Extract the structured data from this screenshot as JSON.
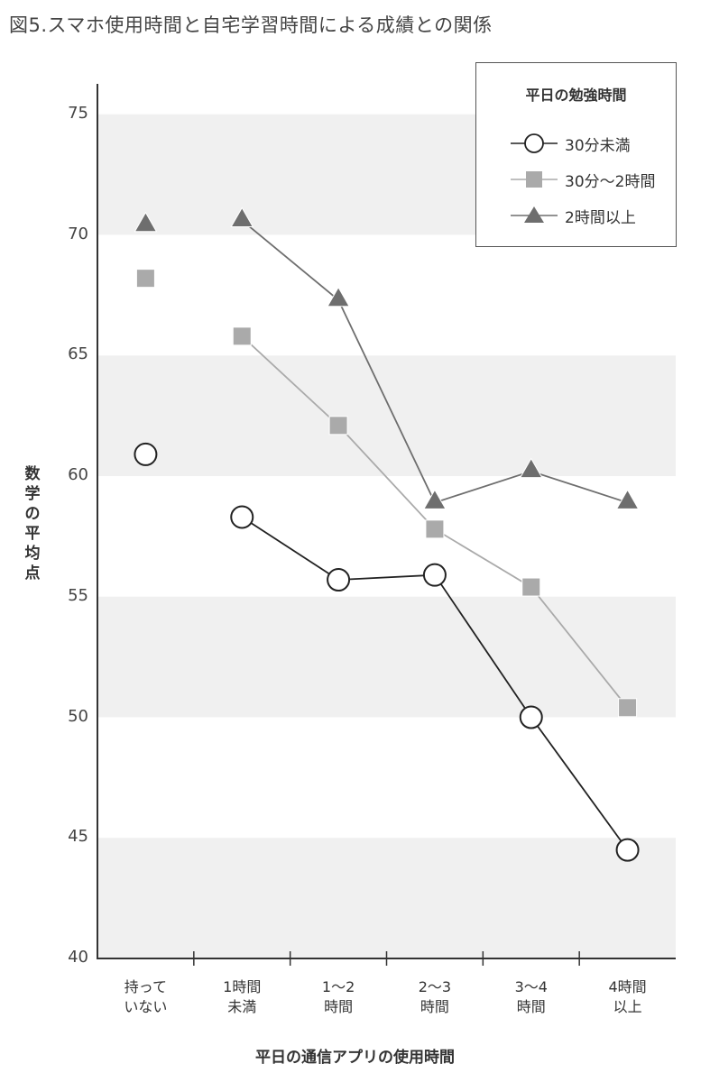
{
  "title": "図5.スマホ使用時間と自宅学習時間による成績との関係",
  "chart_data": {
    "type": "line",
    "title": "図5.スマホ使用時間と自宅学習時間による成績との関係",
    "xlabel": "平日の通信アプリの使用時間",
    "ylabel": "数学の平均点",
    "ylim": [
      40,
      77
    ],
    "yticks": [
      40,
      45,
      50,
      55,
      60,
      65,
      70,
      75
    ],
    "categories": [
      "持って\nいない",
      "1時間\n未満",
      "1～2\n時間",
      "2～3\n時間",
      "3～4\n時間",
      "4時間\n以上"
    ],
    "legend_title": "平日の勉強時間",
    "legend_position": "top-right",
    "grid": "alternating horizontal bands",
    "series": [
      {
        "name": "30分未満",
        "marker": "circle",
        "color": "#222222",
        "fill": "#ffffff",
        "values": [
          60.9,
          58.3,
          55.7,
          55.9,
          50.0,
          44.5
        ],
        "connect_from": 1
      },
      {
        "name": "30分～2時間",
        "marker": "square",
        "color": "#aaaaaa",
        "fill": "#aaaaaa",
        "values": [
          68.2,
          65.8,
          62.1,
          57.8,
          55.4,
          50.4
        ],
        "connect_from": 1
      },
      {
        "name": "2時間以上",
        "marker": "triangle",
        "color": "#6e6e6e",
        "fill": "#6e6e6e",
        "values": [
          70.4,
          70.6,
          67.3,
          58.9,
          60.2,
          58.9
        ],
        "connect_from": 1
      }
    ]
  },
  "legend": {
    "title": "平日の勉強時間",
    "items": [
      "30分未満",
      "30分～2時間",
      "2時間以上"
    ]
  },
  "colors": {
    "band": "#f0f0f0",
    "axis": "#333333"
  }
}
